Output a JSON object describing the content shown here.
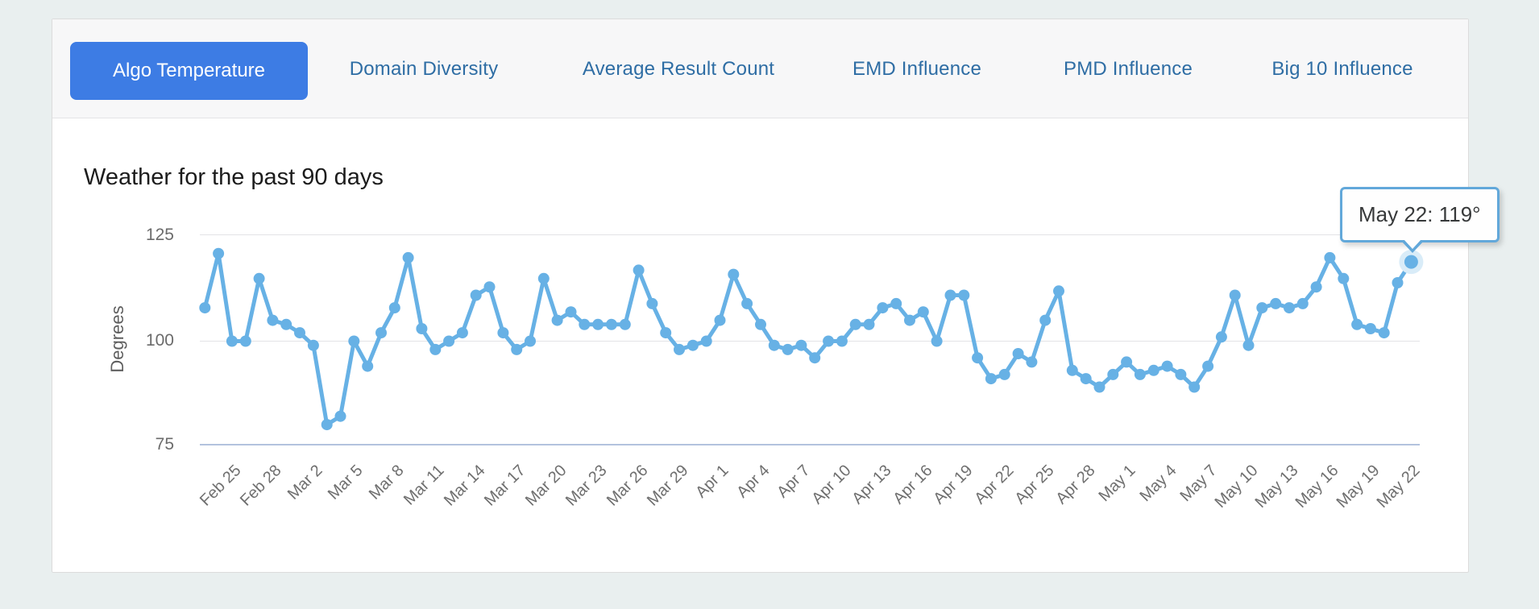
{
  "tabs": {
    "items": [
      {
        "label": "Algo Temperature",
        "active": true
      },
      {
        "label": "Domain Diversity",
        "active": false
      },
      {
        "label": "Average Result Count",
        "active": false
      },
      {
        "label": "EMD Influence",
        "active": false
      },
      {
        "label": "PMD Influence",
        "active": false
      },
      {
        "label": "Big 10 Influence",
        "active": false
      }
    ]
  },
  "chart": {
    "title": "Weather for the past 90 days",
    "y_axis": {
      "label": "Degrees",
      "ticks": [
        125,
        100,
        75
      ]
    },
    "tooltip": {
      "text": "May 22: 119°"
    }
  },
  "colors": {
    "active_tab_bg": "#3d7ce4",
    "tab_text": "#2e6da4",
    "line": "#67b1e5",
    "highlight_halo": "#d9ecf8",
    "tooltip_border": "#62a8da",
    "axis_baseline": "#b3c3de",
    "gridline": "#e3e3e6",
    "page_bg": "#e9efef"
  },
  "chart_data": {
    "type": "line",
    "title": "Weather for the past 90 days",
    "xlabel": "",
    "ylabel": "Degrees",
    "yticks": [
      125,
      100,
      75
    ],
    "ylim": [
      75,
      125
    ],
    "grid": true,
    "legend": false,
    "line_color": "#67b1e5",
    "highlight_halo_color": "#d9ecf8",
    "x": [
      "Feb 23",
      "Feb 24",
      "Feb 25",
      "Feb 26",
      "Feb 27",
      "Feb 28",
      "Feb 29",
      "Mar 1",
      "Mar 2",
      "Mar 3",
      "Mar 4",
      "Mar 5",
      "Mar 6",
      "Mar 7",
      "Mar 8",
      "Mar 9",
      "Mar 10",
      "Mar 11",
      "Mar 12",
      "Mar 13",
      "Mar 14",
      "Mar 15",
      "Mar 16",
      "Mar 17",
      "Mar 18",
      "Mar 19",
      "Mar 20",
      "Mar 21",
      "Mar 22",
      "Mar 23",
      "Mar 24",
      "Mar 25",
      "Mar 26",
      "Mar 27",
      "Mar 28",
      "Mar 29",
      "Mar 30",
      "Mar 31",
      "Apr 1",
      "Apr 2",
      "Apr 3",
      "Apr 4",
      "Apr 5",
      "Apr 6",
      "Apr 7",
      "Apr 8",
      "Apr 9",
      "Apr 10",
      "Apr 11",
      "Apr 12",
      "Apr 13",
      "Apr 14",
      "Apr 15",
      "Apr 16",
      "Apr 17",
      "Apr 18",
      "Apr 19",
      "Apr 20",
      "Apr 21",
      "Apr 22",
      "Apr 23",
      "Apr 24",
      "Apr 25",
      "Apr 26",
      "Apr 27",
      "Apr 28",
      "Apr 29",
      "Apr 30",
      "May 1",
      "May 2",
      "May 3",
      "May 4",
      "May 5",
      "May 6",
      "May 7",
      "May 8",
      "May 9",
      "May 10",
      "May 11",
      "May 12",
      "May 13",
      "May 14",
      "May 15",
      "May 16",
      "May 17",
      "May 18",
      "May 19",
      "May 20",
      "May 21",
      "May 22"
    ],
    "values": [
      108,
      121,
      100,
      100,
      115,
      105,
      104,
      102,
      99,
      80,
      82,
      100,
      94,
      102,
      108,
      120,
      103,
      98,
      100,
      102,
      111,
      113,
      102,
      98,
      100,
      115,
      105,
      107,
      104,
      104,
      104,
      104,
      117,
      109,
      102,
      98,
      99,
      100,
      105,
      116,
      109,
      104,
      99,
      98,
      99,
      96,
      100,
      100,
      104,
      104,
      108,
      109,
      105,
      107,
      100,
      111,
      111,
      96,
      91,
      92,
      97,
      95,
      105,
      112,
      93,
      91,
      89,
      92,
      95,
      92,
      93,
      94,
      92,
      89,
      94,
      101,
      111,
      99,
      108,
      109,
      108,
      109,
      113,
      120,
      115,
      104,
      103,
      102,
      114,
      119
    ],
    "x_tick_labels": [
      "Feb 25",
      "Feb 28",
      "Mar 2",
      "Mar 5",
      "Mar 8",
      "Mar 11",
      "Mar 14",
      "Mar 17",
      "Mar 20",
      "Mar 23",
      "Mar 26",
      "Mar 29",
      "Apr 1",
      "Apr 4",
      "Apr 7",
      "Apr 10",
      "Apr 13",
      "Apr 16",
      "Apr 19",
      "Apr 22",
      "Apr 25",
      "Apr 28",
      "May 1",
      "May 4",
      "May 7",
      "May 10",
      "May 13",
      "May 16",
      "May 19",
      "May 22"
    ],
    "highlight": {
      "index": 89,
      "date": "May 22",
      "value": 119,
      "label": "May 22: 119°"
    }
  }
}
